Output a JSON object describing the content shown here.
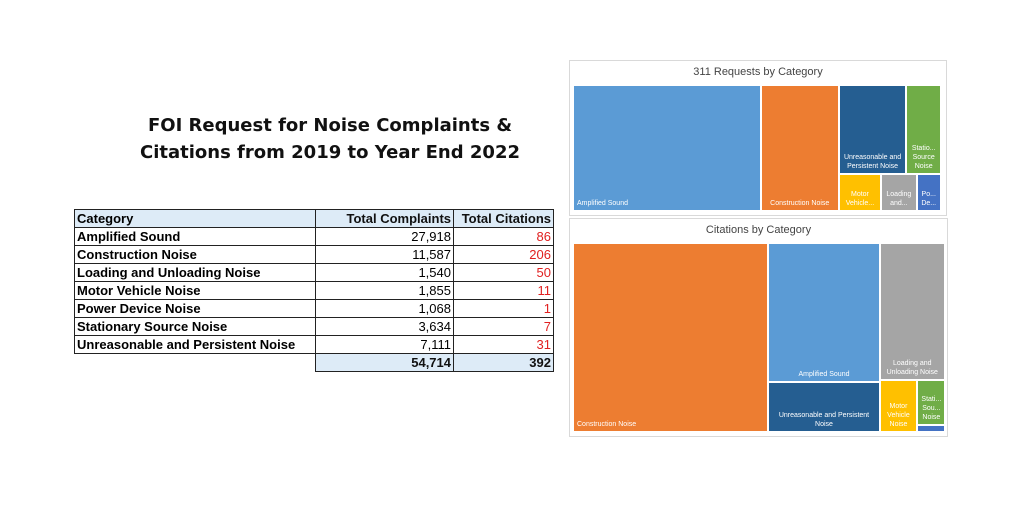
{
  "title": [
    "FOI Request for Noise Complaints &",
    "Citations from 2019 to Year End 2022"
  ],
  "table": {
    "header": [
      "Category",
      "Total Complaints",
      "Total Citations"
    ],
    "rows": [
      [
        "Amplified Sound",
        "27,918",
        "86"
      ],
      [
        "Construction Noise",
        "11,587",
        "206"
      ],
      [
        "Loading and Unloading Noise",
        "1,540",
        "50"
      ],
      [
        "Motor Vehicle Noise",
        "1,855",
        "11"
      ],
      [
        "Power Device Noise",
        "1,068",
        "1"
      ],
      [
        "Stationary Source Noise",
        "3,634",
        "7"
      ],
      [
        "Unreasonable and Persistent Noise",
        "7,111",
        "31"
      ]
    ],
    "totals": [
      "54,714",
      "392"
    ]
  },
  "chart_data": [
    {
      "type": "treemap",
      "title": "311 Requests by Category",
      "categories": [
        "Amplified Sound",
        "Construction Noise",
        "Unreasonable and Persistent Noise",
        "Statio... Source Noise",
        "Motor Vehicle...",
        "Loading and...",
        "Po... De..."
      ],
      "values": [
        27918,
        11587,
        7111,
        3634,
        1855,
        1540,
        1068
      ],
      "colors": [
        "#5b9bd5",
        "#ed7d31",
        "#255e91",
        "#70ad47",
        "#ffc000",
        "#a5a5a5",
        "#4472c4"
      ]
    },
    {
      "type": "treemap",
      "title": "Citations by Category",
      "categories": [
        "Construction Noise",
        "Amplified Sound",
        "Loading and Unloading Noise",
        "Unreasonable and Persistent Noise",
        "Motor Vehicle Noise",
        "Stati... Sou... Noise",
        null
      ],
      "values": [
        206,
        86,
        50,
        31,
        11,
        7,
        1
      ],
      "colors": [
        "#ed7d31",
        "#5b9bd5",
        "#a5a5a5",
        "#255e91",
        "#ffc000",
        "#70ad47",
        "#4472c4"
      ]
    }
  ]
}
